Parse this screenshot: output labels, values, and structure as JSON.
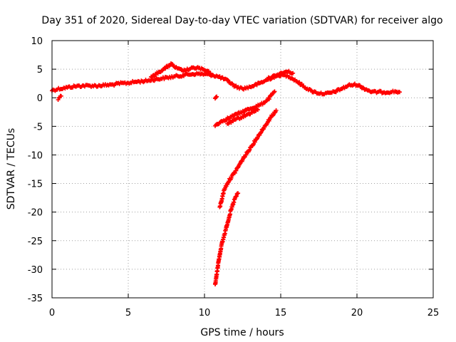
{
  "chart_data": {
    "type": "scatter",
    "title": "Day 351 of 2020, Sidereal Day-to-day VTEC variation (SDTVAR) for receiver algo",
    "xlabel": "GPS time / hours",
    "ylabel": "SDTVAR / TECUs",
    "xlim": [
      0,
      25
    ],
    "ylim": [
      -35,
      10
    ],
    "xticks": [
      0,
      5,
      10,
      15,
      20,
      25
    ],
    "yticks": [
      10,
      5,
      0,
      -5,
      -10,
      -15,
      -20,
      -25,
      -30,
      -35
    ],
    "grid": true,
    "marker": "+",
    "color": "#ff0000",
    "series": [
      {
        "name": "main-band",
        "x": [
          0.0,
          0.5,
          1.0,
          1.5,
          2.0,
          2.5,
          3.0,
          3.5,
          4.0,
          4.5,
          5.0,
          5.5,
          6.0,
          6.5,
          7.0,
          7.5,
          8.0,
          8.5,
          9.0,
          9.5,
          10.0,
          10.5,
          11.0,
          11.5,
          12.0,
          12.5,
          13.0,
          13.5,
          14.0,
          14.5,
          15.0,
          15.5,
          16.0,
          16.5,
          17.0,
          17.5,
          18.0,
          18.5,
          19.0,
          19.5,
          20.0,
          20.5,
          21.0,
          21.5,
          22.0,
          22.5,
          22.8
        ],
        "y": [
          1.3,
          1.6,
          1.8,
          2.0,
          2.1,
          2.1,
          2.1,
          2.2,
          2.3,
          2.5,
          2.6,
          2.8,
          2.9,
          3.1,
          3.3,
          3.5,
          3.7,
          3.9,
          4.1,
          4.2,
          4.1,
          4.0,
          3.6,
          3.0,
          2.0,
          1.6,
          1.9,
          2.4,
          3.0,
          3.6,
          4.0,
          3.8,
          3.0,
          2.0,
          1.2,
          0.8,
          0.7,
          1.0,
          1.6,
          2.2,
          2.3,
          1.6,
          1.0,
          1.0,
          1.0,
          1.1,
          1.0
        ]
      },
      {
        "name": "upper-arc",
        "x": [
          6.5,
          7.0,
          7.5,
          7.8,
          8.2,
          8.6,
          9.0,
          9.5,
          10.0,
          10.4
        ],
        "y": [
          3.5,
          4.5,
          5.3,
          5.9,
          5.1,
          4.7,
          5.0,
          5.3,
          4.8,
          4.3
        ]
      },
      {
        "name": "mid-right-arc",
        "x": [
          14.2,
          14.6,
          15.0,
          15.4,
          15.8
        ],
        "y": [
          3.4,
          3.8,
          4.2,
          4.6,
          4.3
        ]
      },
      {
        "name": "small-mark-0.4",
        "x": [
          0.4,
          0.6
        ],
        "y": [
          -0.2,
          0.3
        ]
      },
      {
        "name": "small-mark-10.7",
        "x": [
          10.7,
          10.8
        ],
        "y": [
          -0.1,
          0.2
        ]
      },
      {
        "name": "descending-band",
        "x": [
          10.7,
          11.2,
          11.7,
          12.2,
          12.7,
          13.2,
          13.7,
          14.2,
          14.6
        ],
        "y": [
          -4.8,
          -4.0,
          -3.4,
          -2.8,
          -2.2,
          -1.7,
          -1.2,
          -0.2,
          1.1
        ]
      },
      {
        "name": "lower-band",
        "x": [
          11.5,
          12.0,
          12.5,
          13.0,
          13.5
        ],
        "y": [
          -4.5,
          -3.9,
          -3.3,
          -2.7,
          -2.1
        ]
      },
      {
        "name": "recovery-curve",
        "x": [
          11.0,
          11.3,
          11.6,
          12.0,
          12.5,
          13.0,
          13.5,
          14.0,
          14.4,
          14.7
        ],
        "y": [
          -19.2,
          -16.0,
          -14.5,
          -13.0,
          -10.8,
          -8.8,
          -6.8,
          -4.8,
          -3.2,
          -2.2
        ]
      },
      {
        "name": "steep-drop",
        "x": [
          10.7,
          10.9,
          11.1,
          11.4,
          11.7,
          12.0,
          12.2
        ],
        "y": [
          -32.8,
          -29.0,
          -26.0,
          -23.0,
          -20.0,
          -17.6,
          -16.7
        ]
      }
    ]
  }
}
